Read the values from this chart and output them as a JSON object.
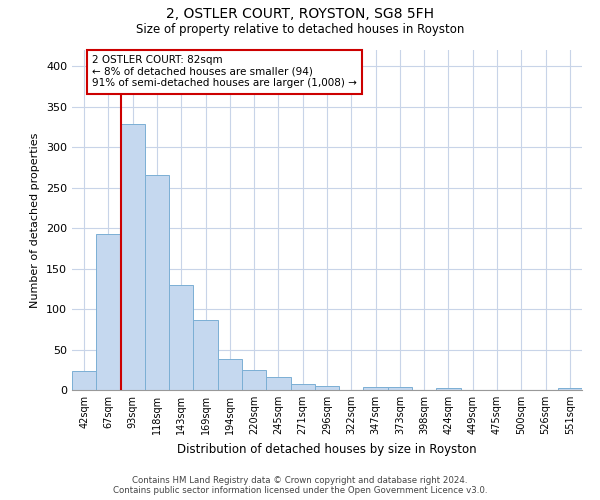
{
  "title_line1": "2, OSTLER COURT, ROYSTON, SG8 5FH",
  "title_line2": "Size of property relative to detached houses in Royston",
  "xlabel": "Distribution of detached houses by size in Royston",
  "ylabel": "Number of detached properties",
  "categories": [
    "42sqm",
    "67sqm",
    "93sqm",
    "118sqm",
    "143sqm",
    "169sqm",
    "194sqm",
    "220sqm",
    "245sqm",
    "271sqm",
    "296sqm",
    "322sqm",
    "347sqm",
    "373sqm",
    "398sqm",
    "424sqm",
    "449sqm",
    "475sqm",
    "500sqm",
    "526sqm",
    "551sqm"
  ],
  "values": [
    24,
    193,
    328,
    265,
    130,
    87,
    38,
    25,
    16,
    8,
    5,
    0,
    4,
    4,
    0,
    2,
    0,
    0,
    0,
    0,
    2
  ],
  "bar_color": "#c5d8ef",
  "bar_edge_color": "#7bafd4",
  "grid_color": "#c8d4e8",
  "annotation_box_color": "#ffffff",
  "annotation_box_edge_color": "#cc0000",
  "vline_color": "#cc0000",
  "vline_x": 1.5,
  "annotation_text_line1": "2 OSTLER COURT: 82sqm",
  "annotation_text_line2": "← 8% of detached houses are smaller (94)",
  "annotation_text_line3": "91% of semi-detached houses are larger (1,008) →",
  "ylim": [
    0,
    420
  ],
  "yticks": [
    0,
    50,
    100,
    150,
    200,
    250,
    300,
    350,
    400
  ],
  "footer_line1": "Contains HM Land Registry data © Crown copyright and database right 2024.",
  "footer_line2": "Contains public sector information licensed under the Open Government Licence v3.0.",
  "bg_color": "#ffffff"
}
